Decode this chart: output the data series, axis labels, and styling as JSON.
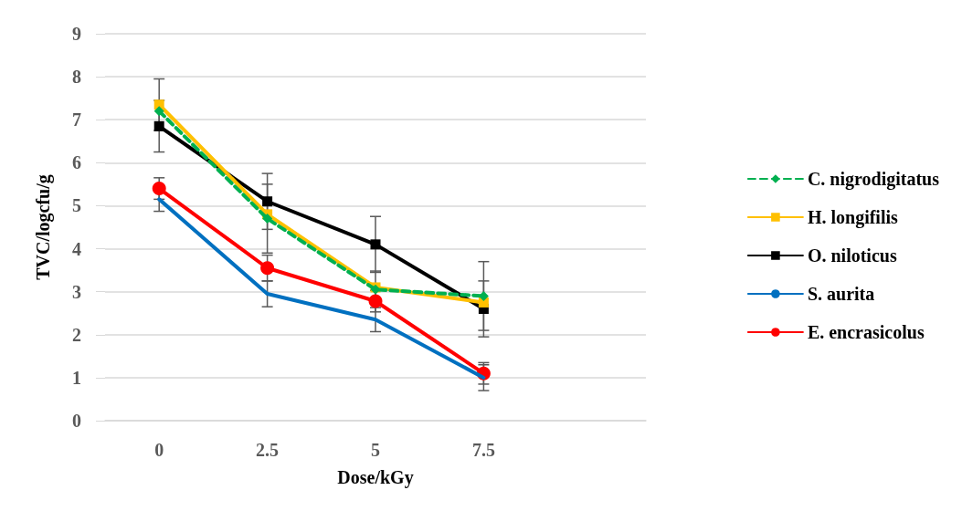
{
  "chart_data": {
    "type": "line",
    "xlabel": "Dose/kGy",
    "ylabel": "TVC/logcfu/g",
    "categories": [
      "0",
      "2.5",
      "5",
      "7.5",
      null
    ],
    "ylim": [
      0,
      9
    ],
    "yticks": [
      0,
      1,
      2,
      3,
      4,
      5,
      6,
      7,
      8,
      9
    ],
    "grid": "y",
    "legend": "right",
    "series": [
      {
        "name": "C. nigrodigitatus",
        "color": "#00b050",
        "line_style": "dashed",
        "marker": "diamond",
        "values": [
          7.2,
          4.7,
          3.05,
          2.9,
          null
        ],
        "errors": [
          null,
          0.8,
          null,
          0.8,
          null
        ]
      },
      {
        "name": "H. longifilis",
        "color": "#ffc000",
        "line_style": "solid",
        "marker": "square",
        "values": [
          7.35,
          4.8,
          3.1,
          2.75,
          null
        ],
        "errors": [
          0.6,
          null,
          0.38,
          null,
          null
        ]
      },
      {
        "name": "O. niloticus",
        "color": "#000000",
        "line_style": "solid",
        "marker": "square",
        "values": [
          6.85,
          5.1,
          4.1,
          2.6,
          null
        ],
        "errors": [
          0.6,
          0.65,
          0.65,
          0.65,
          null
        ]
      },
      {
        "name": "S. aurita",
        "color": "#0070c0",
        "line_style": "solid",
        "marker": "none",
        "values": [
          5.15,
          2.95,
          2.35,
          1.0,
          null
        ],
        "errors": [
          0.28,
          0.3,
          0.28,
          0.3,
          null
        ]
      },
      {
        "name": "E. encrasicolus",
        "color": "#ff0000",
        "line_style": "solid",
        "marker": "circle",
        "values": [
          5.4,
          3.55,
          2.78,
          1.1,
          null
        ],
        "errors": [
          0.25,
          0.3,
          0.25,
          0.25,
          null
        ]
      }
    ]
  }
}
